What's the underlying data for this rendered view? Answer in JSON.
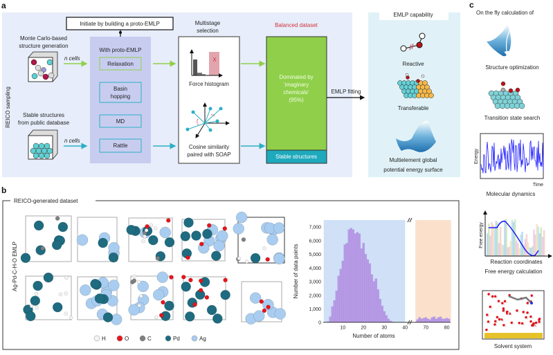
{
  "panel_a": {
    "label": "a",
    "side_label": "REICO sampling",
    "initiate": "Initiate by building a proto-EMLP",
    "mc_line1": "Monte Carlo-based",
    "mc_line2": "structure generation",
    "stable_line1": "Stable structures",
    "stable_line2": "from public database",
    "n_cells_1": "n cells",
    "n_cells_2": "n cells",
    "proto_title": "With proto-EMLP",
    "methods": [
      "Relaxation",
      "Basin",
      "hopping",
      "MD",
      "Rattle"
    ],
    "selection_line1": "Multistage",
    "selection_line2": "selection",
    "force_histogram": "Force histogram",
    "force_reject_mark": "X",
    "cosine_line1": "Cosine similarity",
    "cosine_line2": "paired with SOAP",
    "balanced_title": "Balanced dataset",
    "dominated": [
      "Dominated by",
      "‘imaginary",
      "chemicals’",
      "(95%)"
    ],
    "stable_band": "Stable structures",
    "emlp_fitting": "EMLP fitting",
    "capability_title": "EMLP capability",
    "reactive": "Reactive",
    "transferable": "Transferable",
    "pes_line1": "Multielement global",
    "pes_line2": "potential energy surface",
    "colors": {
      "panel": "#e7edfa",
      "proto": "#c8cdf0",
      "green": "#8fcf4a",
      "teal": "#2bb0c4",
      "balanced_title": "#d0343c",
      "capability_panel": "#e0f2f7"
    }
  },
  "panel_b": {
    "label": "b",
    "title": "REICO-generated dataset",
    "side_label": "Ag-Pd-C-H-O EMLP",
    "legend": [
      {
        "symbol": "H",
        "color": "#f4f4f4"
      },
      {
        "symbol": "O",
        "color": "#e8141c"
      },
      {
        "symbol": "C",
        "color": "#808080"
      },
      {
        "symbol": "Pd",
        "color": "#1f6b80"
      },
      {
        "symbol": "Ag",
        "color": "#a9cdf0"
      }
    ]
  },
  "chart_data": {
    "type": "bar",
    "xlabel": "Number of atoms",
    "ylabel": "Number of data points",
    "ylim": [
      0,
      7500
    ],
    "yticks": [
      "0",
      "1,000",
      "2,000",
      "3,000",
      "4,000",
      "5,000",
      "6,000",
      "7,000"
    ],
    "ytick_values": [
      0,
      1000,
      2000,
      3000,
      4000,
      5000,
      6000,
      7000
    ],
    "x_segments": [
      [
        0.8,
        40
      ],
      [
        65,
        82
      ]
    ],
    "xticks": [
      "10",
      "20",
      "30",
      "40",
      "70",
      "80"
    ],
    "xtick_values": [
      10,
      20,
      30,
      40,
      70,
      80
    ],
    "segment_colors": [
      "#cfe0f7",
      "#fbe0cc"
    ],
    "bar_color": "#b79ae6",
    "x": [
      3,
      4,
      5,
      6,
      7,
      8,
      9,
      10,
      11,
      12,
      13,
      14,
      15,
      16,
      17,
      18,
      19,
      20,
      21,
      22,
      23,
      24,
      25,
      26,
      27,
      28,
      29,
      30,
      31,
      32,
      33,
      34,
      66,
      67,
      68,
      69,
      70,
      71,
      72,
      73,
      74,
      75,
      76,
      77,
      78,
      79,
      80,
      81
    ],
    "values": [
      50,
      400,
      1150,
      1600,
      2300,
      3400,
      3900,
      4500,
      5700,
      5800,
      6800,
      6900,
      6800,
      6500,
      6600,
      6500,
      5400,
      5800,
      5000,
      4600,
      4300,
      3500,
      3000,
      3200,
      2400,
      1700,
      1200,
      800,
      500,
      250,
      100,
      30,
      200,
      350,
      250,
      300,
      350,
      250,
      200,
      350,
      400,
      250,
      350,
      400,
      250,
      250,
      300,
      250
    ]
  },
  "panel_c": {
    "label": "c",
    "title": "On the fly calculation of",
    "structure_optimization": "Structure optimization",
    "transition_state": "Transition state search",
    "md_ylabel": "Energy",
    "md_xlabel": "Time",
    "molecular_dynamics": "Molecular dynamics",
    "fe_ylabel": "Free energy",
    "fe_xlabel": "Reaction coordinates",
    "free_energy": "Free energy calculation",
    "solvent": "Solvent system"
  }
}
